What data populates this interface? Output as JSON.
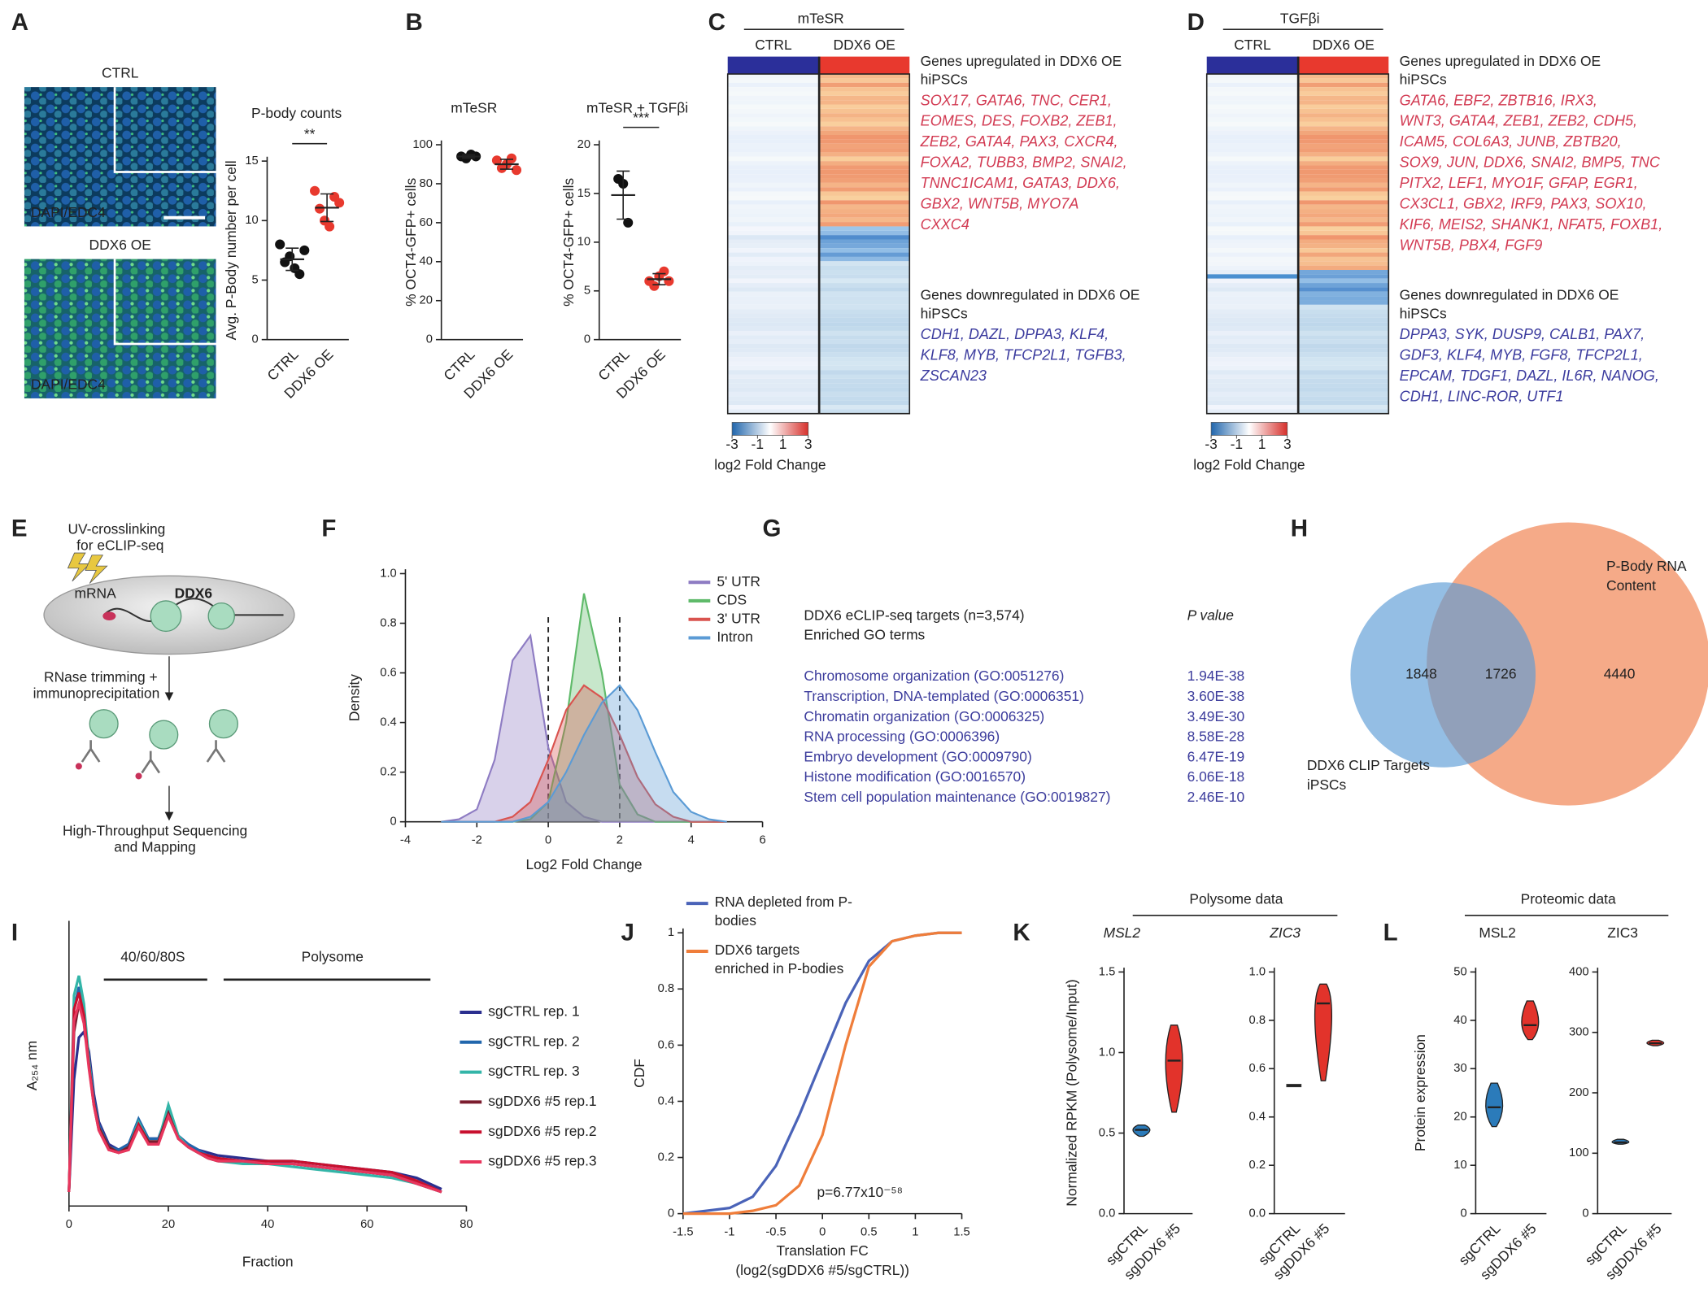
{
  "panel_labels": [
    "A",
    "B",
    "C",
    "D",
    "E",
    "F",
    "G",
    "H",
    "I",
    "J",
    "K",
    "L"
  ],
  "panel_a": {
    "top_label": "CTRL",
    "bottom_label": "DDX6 OE",
    "stain_labels": [
      "DAPI/EDC4",
      "DAPI/EDC4"
    ]
  },
  "panel_c": {
    "title": "mTeSR",
    "columns": [
      "CTRL",
      "DDX6 OE"
    ],
    "colorbar_lim": [
      -3,
      3
    ],
    "colorbar_ticks": [
      -3,
      -1,
      1,
      3
    ],
    "colorbar_label": "log2 Fold Change",
    "up_header": [
      "Genes upregulated in DDX6 OE",
      "hiPSCs"
    ],
    "up_genes": [
      "SOX17, GATA6, TNC, CER1,",
      "EOMES, DES, FOXB2, ZEB1,",
      "ZEB2, GATA4, PAX3, CXCR4,",
      "FOXA2, TUBB3, BMP2, SNAI2,",
      "TNNC1ICAM1, GATA3, DDX6,",
      "GBX2, WNT5B, MYO7A",
      "CXXC4"
    ],
    "down_header": [
      "Genes downregulated in DDX6 OE",
      "hiPSCs"
    ],
    "down_genes": [
      "CDH1, DAZL, DPPA3, KLF4,",
      "KLF8, MYB, TFCP2L1, TGFB3,",
      "ZSCAN23"
    ]
  },
  "panel_d": {
    "title": "TGFβi",
    "columns": [
      "CTRL",
      "DDX6 OE"
    ],
    "colorbar_lim": [
      -3,
      3
    ],
    "colorbar_ticks": [
      -3,
      -1,
      1,
      3
    ],
    "colorbar_label": "log2 Fold Change",
    "up_header": [
      "Genes upregulated in DDX6 OE",
      "hiPSCs"
    ],
    "up_genes": [
      "GATA6, EBF2, ZBTB16, IRX3,",
      "WNT3, GATA4, ZEB1, ZEB2, CDH5,",
      "ICAM5, COL6A3, JUNB, ZBTB20,",
      "SOX9, JUN, DDX6, SNAI2, BMP5, TNC",
      "PITX2, LEF1, MYO1F, GFAP, EGR1,",
      "CX3CL1, GBX2, IRF9, PAX3, SOX10,",
      "KIF6, MEIS2, SHANK1, NFAT5, FOXB1,",
      "WNT5B, PBX4, FGF9"
    ],
    "down_header": [
      "Genes downregulated in DDX6 OE",
      "hiPSCs"
    ],
    "down_genes": [
      "DPPA3, SYK, DUSP9, CALB1, PAX7,",
      "GDF3, KLF4, MYB, FGF8, TFCP2L1,",
      "EPCAM, TDGF1, DAZL, IL6R, NANOG,",
      "CDH1, LINC-ROR, UTF1"
    ]
  },
  "panel_e": {
    "step1": [
      "UV-crosslinking",
      "for eCLIP-seq"
    ],
    "mrna": "mRNA",
    "protein": "DDX6",
    "step2": [
      "RNase trimming +",
      "immunoprecipitation"
    ],
    "step3": [
      "High-Throughput Sequencing",
      "and Mapping"
    ]
  },
  "panel_g": {
    "header": [
      "DDX6 eCLIP-seq targets (n=3,574)",
      "Enriched GO terms"
    ],
    "p_header": "P value",
    "rows": [
      [
        "Chromosome organization (GO:0051276)",
        "1.94E-38"
      ],
      [
        "Transcription, DNA-templated (GO:0006351)",
        "3.60E-38"
      ],
      [
        "Chromatin organization (GO:0006325)",
        "3.49E-30"
      ],
      [
        "RNA processing (GO:0006396)",
        "8.58E-28"
      ],
      [
        "Embryo development (GO:0009790)",
        "6.47E-19"
      ],
      [
        "Histone modification (GO:0016570)",
        "6.06E-18"
      ],
      [
        "Stem cell population maintenance (GO:0019827)",
        "2.46E-10"
      ]
    ]
  },
  "panel_h": {
    "pbody_label": [
      "P-Body RNA",
      "Content"
    ],
    "clip_label": [
      "DDX6 CLIP Targets",
      "iPSCs"
    ],
    "clip_only": 1848,
    "overlap": 1726,
    "pbody_only": 4440
  },
  "panel_i_regions": [
    "40/60/80S",
    "Polysome"
  ],
  "panel_k_header": "Polysome data",
  "panel_l_header": "Proteomic data",
  "chart_data": [
    {
      "type": "strip",
      "title": "P-body counts",
      "ylabel": "Avg. P-Body number per cell",
      "categories": [
        "CTRL",
        "DDX6 OE"
      ],
      "colors": [
        "#111111",
        "#e8392e"
      ],
      "values": [
        [
          8,
          6.5,
          7,
          6,
          5.5,
          7.5
        ],
        [
          12.5,
          11,
          10,
          9.5,
          12,
          11.5
        ]
      ],
      "ylim": [
        0,
        15
      ],
      "yticks": [
        0,
        5,
        10,
        15
      ],
      "significance": "**"
    },
    {
      "type": "strip",
      "title": "mTeSR",
      "ylabel": "% OCT4-GFP+ cells",
      "categories": [
        "CTRL",
        "DDX6 OE"
      ],
      "colors": [
        "#111111",
        "#e8392e"
      ],
      "values": [
        [
          94,
          93,
          95,
          94
        ],
        [
          92,
          88,
          90,
          93,
          87
        ]
      ],
      "ylim": [
        0,
        100
      ],
      "yticks": [
        0,
        20,
        40,
        60,
        80,
        100
      ]
    },
    {
      "type": "strip",
      "title": "mTeSR + TGFβi",
      "ylabel": "% OCT4-GFP+ cells",
      "categories": [
        "CTRL",
        "DDX6 OE"
      ],
      "colors": [
        "#111111",
        "#e8392e"
      ],
      "values": [
        [
          16.5,
          16,
          12
        ],
        [
          6,
          5.5,
          6.5,
          7,
          6
        ]
      ],
      "ylim": [
        0,
        20
      ],
      "yticks": [
        0,
        5,
        10,
        15,
        20
      ],
      "significance": "***"
    },
    {
      "type": "area",
      "xlabel": "Log2 Fold Change",
      "ylabel": "Density",
      "x": [
        -3,
        -2.5,
        -2,
        -1.5,
        -1,
        -0.5,
        0,
        0.5,
        1,
        1.5,
        2,
        2.5,
        3,
        3.5,
        4,
        4.5,
        5
      ],
      "series": [
        {
          "name": "5' UTR",
          "color": "#8e7cc3",
          "values": [
            0,
            0.01,
            0.05,
            0.25,
            0.65,
            0.75,
            0.3,
            0.08,
            0.02,
            0,
            0,
            0,
            0,
            0,
            0,
            0,
            0
          ]
        },
        {
          "name": "CDS",
          "color": "#5fba6a",
          "values": [
            0,
            0,
            0,
            0,
            0,
            0.01,
            0.08,
            0.4,
            0.92,
            0.6,
            0.15,
            0.03,
            0,
            0,
            0,
            0,
            0
          ]
        },
        {
          "name": "3' UTR",
          "color": "#d9534f",
          "values": [
            0,
            0,
            0,
            0,
            0.02,
            0.08,
            0.25,
            0.45,
            0.55,
            0.5,
            0.35,
            0.18,
            0.07,
            0.02,
            0,
            0,
            0
          ]
        },
        {
          "name": "Intron",
          "color": "#5b9bd5",
          "values": [
            0,
            0,
            0,
            0,
            0,
            0.02,
            0.08,
            0.2,
            0.35,
            0.48,
            0.55,
            0.45,
            0.28,
            0.12,
            0.04,
            0.01,
            0
          ]
        }
      ],
      "xlim": [
        -4,
        6
      ],
      "xticks": [
        -4,
        -2,
        0,
        2,
        4,
        6
      ],
      "ylim": [
        0,
        1
      ],
      "yticks": [
        0,
        0.2,
        0.4,
        0.6,
        0.8,
        {
          "value": 1,
          "label": "1.0"
        }
      ],
      "reference_lines": [
        0,
        2
      ]
    },
    {
      "type": "line",
      "xlabel": "Fraction",
      "ylabel": "A₂₅₄ nm",
      "x": [
        0,
        1,
        2,
        3,
        4,
        5,
        6,
        8,
        10,
        12,
        14,
        16,
        18,
        20,
        22,
        24,
        26,
        28,
        30,
        35,
        40,
        45,
        50,
        55,
        60,
        65,
        70,
        75
      ],
      "series": [
        {
          "name": "sgCTRL rep. 1",
          "color": "#2b2f8f",
          "values": [
            0.05,
            0.45,
            0.6,
            0.62,
            0.55,
            0.4,
            0.3,
            0.22,
            0.2,
            0.22,
            0.3,
            0.24,
            0.24,
            0.33,
            0.25,
            0.22,
            0.2,
            0.19,
            0.18,
            0.17,
            0.16,
            0.16,
            0.15,
            0.14,
            0.13,
            0.12,
            0.1,
            0.06
          ]
        },
        {
          "name": "sgCTRL rep. 2",
          "color": "#2166ac",
          "values": [
            0.05,
            0.7,
            0.78,
            0.7,
            0.52,
            0.38,
            0.29,
            0.21,
            0.2,
            0.22,
            0.31,
            0.24,
            0.24,
            0.34,
            0.25,
            0.22,
            0.2,
            0.18,
            0.17,
            0.16,
            0.16,
            0.15,
            0.14,
            0.13,
            0.12,
            0.11,
            0.09,
            0.05
          ]
        },
        {
          "name": "sgCTRL rep. 3",
          "color": "#33b5a8",
          "values": [
            0.05,
            0.75,
            0.82,
            0.72,
            0.52,
            0.37,
            0.28,
            0.21,
            0.19,
            0.21,
            0.3,
            0.23,
            0.23,
            0.36,
            0.25,
            0.21,
            0.19,
            0.17,
            0.16,
            0.15,
            0.15,
            0.14,
            0.13,
            0.12,
            0.11,
            0.1,
            0.08,
            0.05
          ]
        },
        {
          "name": "sgDDX6 #5 rep.1",
          "color": "#7b1c2e",
          "values": [
            0.05,
            0.62,
            0.72,
            0.66,
            0.5,
            0.37,
            0.28,
            0.21,
            0.19,
            0.21,
            0.29,
            0.23,
            0.23,
            0.33,
            0.24,
            0.21,
            0.19,
            0.17,
            0.16,
            0.16,
            0.15,
            0.15,
            0.14,
            0.13,
            0.12,
            0.11,
            0.08,
            0.05
          ]
        },
        {
          "name": "sgDDX6 #5 rep.2",
          "color": "#c8102e",
          "values": [
            0.05,
            0.7,
            0.76,
            0.68,
            0.5,
            0.36,
            0.27,
            0.2,
            0.19,
            0.2,
            0.29,
            0.22,
            0.22,
            0.32,
            0.24,
            0.21,
            0.19,
            0.18,
            0.17,
            0.16,
            0.16,
            0.16,
            0.15,
            0.14,
            0.13,
            0.12,
            0.09,
            0.05
          ]
        },
        {
          "name": "sgDDX6 #5 rep.3",
          "color": "#e8365d",
          "values": [
            0.05,
            0.66,
            0.72,
            0.65,
            0.49,
            0.36,
            0.27,
            0.2,
            0.19,
            0.2,
            0.28,
            0.22,
            0.22,
            0.32,
            0.24,
            0.21,
            0.19,
            0.17,
            0.16,
            0.16,
            0.15,
            0.15,
            0.14,
            0.13,
            0.12,
            0.11,
            0.08,
            0.05
          ]
        }
      ],
      "xlim": [
        0,
        80
      ],
      "xticks": [
        0,
        20,
        40,
        60,
        80
      ],
      "ylim": [
        0,
        1
      ]
    },
    {
      "type": "line",
      "xlabel": "Translation FC",
      "xlabel_sub": "(log2(sgDDX6 #5/sgCTRL))",
      "ylabel": "CDF",
      "x": [
        -1.5,
        -1,
        -0.75,
        -0.5,
        -0.25,
        0,
        0.25,
        0.5,
        0.75,
        1,
        1.25,
        1.5
      ],
      "series": [
        {
          "name": "RNA depleted from P-bodies",
          "color": "#4a63b8",
          "values": [
            0,
            0.02,
            0.06,
            0.17,
            0.35,
            0.55,
            0.75,
            0.9,
            0.97,
            0.99,
            1,
            1
          ]
        },
        {
          "name": "DDX6 targets enriched in P-bodies",
          "color": "#ef7d3a",
          "values": [
            0,
            0,
            0.01,
            0.03,
            0.1,
            0.28,
            0.6,
            0.88,
            0.97,
            0.99,
            1,
            1
          ]
        }
      ],
      "xlim": [
        -1.5,
        1.5
      ],
      "xticks": [
        -1.5,
        -1,
        -0.5,
        0,
        0.5,
        1,
        1.5
      ],
      "ylim": [
        0,
        1
      ],
      "yticks": [
        0,
        0.2,
        0.4,
        0.6,
        0.8,
        1
      ],
      "annotation": "p=6.77x10⁻⁵⁸"
    },
    {
      "type": "violin",
      "title": "MSL2",
      "italic_title": true,
      "ylabel": "Normalized RPKM (Polysome/Input)",
      "categories": [
        "sgCTRL",
        "sgDDX6 #5"
      ],
      "colors": [
        "#2b7bba",
        "#e2332b"
      ],
      "min": [
        0.48,
        0.63
      ],
      "median": [
        0.52,
        0.95
      ],
      "max": [
        0.55,
        1.17
      ],
      "ylim": [
        0,
        1.5
      ],
      "yticks": [
        {
          "value": 0,
          "label": "0.0"
        },
        0.5,
        {
          "value": 1,
          "label": "1.0"
        },
        1.5
      ]
    },
    {
      "type": "violin",
      "title": "ZIC3",
      "italic_title": true,
      "categories": [
        "sgCTRL",
        "sgDDX6 #5"
      ],
      "colors": [
        "#2b7bba",
        "#e2332b"
      ],
      "min": [
        0.53,
        0.55
      ],
      "median": [
        0.53,
        0.87
      ],
      "max": [
        0.53,
        0.95
      ],
      "ylim": [
        0,
        1
      ],
      "yticks": [
        {
          "value": 0,
          "label": "0.0"
        },
        0.2,
        0.4,
        0.6,
        0.8,
        {
          "value": 1,
          "label": "1.0"
        }
      ]
    },
    {
      "type": "violin",
      "title": "MSL2",
      "ylabel": "Protein expression",
      "categories": [
        "sgCTRL",
        "sgDDX6 #5"
      ],
      "colors": [
        "#2b7bba",
        "#e2332b"
      ],
      "min": [
        18,
        36
      ],
      "median": [
        22,
        39
      ],
      "max": [
        27,
        44
      ],
      "ylim": [
        0,
        50
      ],
      "yticks": [
        0,
        10,
        20,
        30,
        40,
        50
      ]
    },
    {
      "type": "violin",
      "title": "ZIC3",
      "categories": [
        "sgCTRL",
        "sgDDX6 #5"
      ],
      "colors": [
        "#2b7bba",
        "#e2332b"
      ],
      "min": [
        115,
        278
      ],
      "median": [
        118,
        282
      ],
      "max": [
        123,
        287
      ],
      "ylim": [
        0,
        400
      ],
      "yticks": [
        0,
        100,
        200,
        300,
        400
      ]
    }
  ]
}
